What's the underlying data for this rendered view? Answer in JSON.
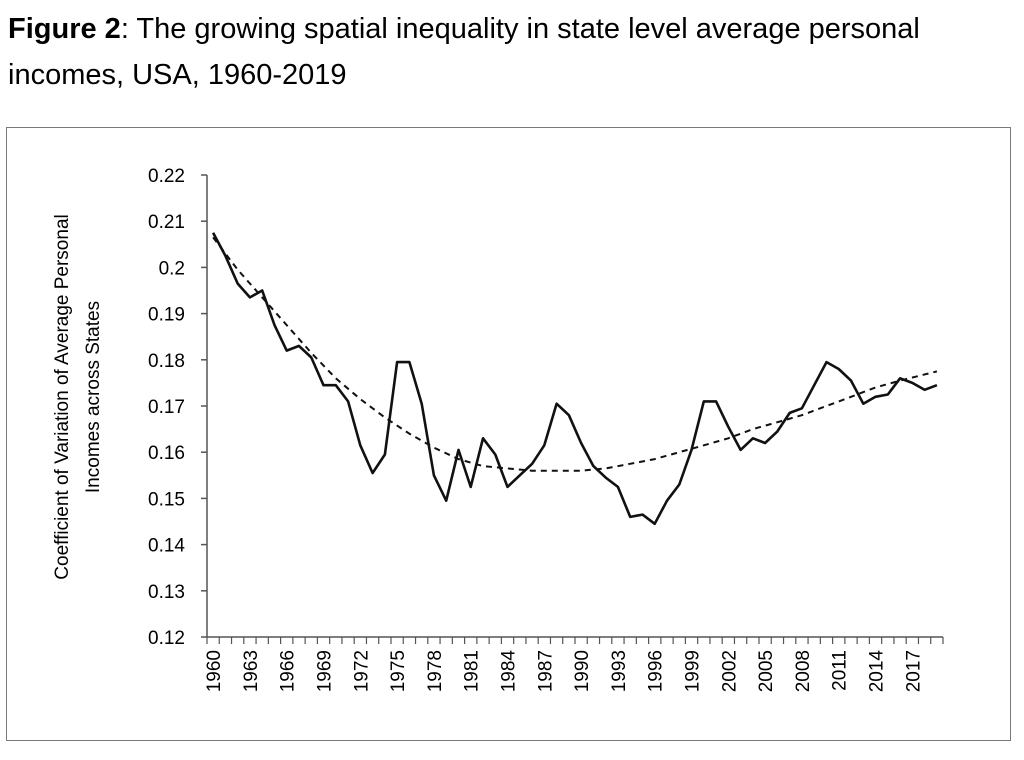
{
  "caption": {
    "prefix": "Figure 2",
    "text": ": The growing spatial inequality in state level average personal incomes, USA, 1960-2019"
  },
  "chart_data": {
    "type": "line",
    "title": "",
    "xlabel": "",
    "ylabel_line1": "Coefficient of Variation of Average Personal",
    "ylabel_line2": "Incomes across States",
    "ylim": [
      0.12,
      0.22
    ],
    "yticks": [
      0.12,
      0.13,
      0.14,
      0.15,
      0.16,
      0.17,
      0.18,
      0.19,
      0.2,
      0.21,
      0.22
    ],
    "ytick_labels": [
      "0.12",
      "0.13",
      "0.14",
      "0.15",
      "0.16",
      "0.17",
      "0.18",
      "0.19",
      "0.2",
      "0.21",
      "0.22"
    ],
    "xlim": [
      1960,
      2019
    ],
    "xtick_labels": [
      "1960",
      "1963",
      "1966",
      "1969",
      "1972",
      "1975",
      "1978",
      "1981",
      "1984",
      "1987",
      "1990",
      "1993",
      "1996",
      "1999",
      "2002",
      "2005",
      "2008",
      "2011",
      "2014",
      "2017"
    ],
    "grid": false,
    "series": [
      {
        "style": "solid",
        "x": [
          1960,
          1961,
          1962,
          1963,
          1964,
          1965,
          1966,
          1967,
          1968,
          1969,
          1970,
          1971,
          1972,
          1973,
          1974,
          1975,
          1976,
          1977,
          1978,
          1979,
          1980,
          1981,
          1982,
          1983,
          1984,
          1985,
          1986,
          1987,
          1988,
          1989,
          1990,
          1991,
          1992,
          1993,
          1994,
          1995,
          1996,
          1997,
          1998,
          1999,
          2000,
          2001,
          2002,
          2003,
          2004,
          2005,
          2006,
          2007,
          2008,
          2009,
          2010,
          2011,
          2012,
          2013,
          2014,
          2015,
          2016,
          2017,
          2018,
          2019
        ],
        "values": [
          0.2075,
          0.2025,
          0.1965,
          0.1935,
          0.195,
          0.1875,
          0.182,
          0.183,
          0.1805,
          0.1745,
          0.1745,
          0.171,
          0.1615,
          0.1555,
          0.1595,
          0.1795,
          0.1795,
          0.1705,
          0.155,
          0.1495,
          0.1605,
          0.1525,
          0.163,
          0.1595,
          0.1525,
          0.155,
          0.1575,
          0.1615,
          0.1705,
          0.168,
          0.162,
          0.157,
          0.1545,
          0.1525,
          0.146,
          0.1465,
          0.1445,
          0.1495,
          0.153,
          0.1605,
          0.171,
          0.171,
          0.1655,
          0.1605,
          0.163,
          0.162,
          0.1645,
          0.1685,
          0.1695,
          0.1745,
          0.1795,
          0.178,
          0.1755,
          0.1705,
          0.172,
          0.1725,
          0.176,
          0.175,
          0.1735,
          0.1745
        ]
      },
      {
        "style": "dashed",
        "x": [
          1960,
          1962,
          1964,
          1966,
          1968,
          1970,
          1972,
          1974,
          1976,
          1978,
          1980,
          1982,
          1984,
          1986,
          1988,
          1990,
          1992,
          1994,
          1996,
          1998,
          2000,
          2002,
          2004,
          2006,
          2008,
          2010,
          2012,
          2014,
          2016,
          2019
        ],
        "values": [
          0.2065,
          0.1995,
          0.1935,
          0.1875,
          0.1815,
          0.176,
          0.1715,
          0.1675,
          0.164,
          0.161,
          0.1585,
          0.157,
          0.1565,
          0.156,
          0.156,
          0.156,
          0.1565,
          0.1575,
          0.1585,
          0.16,
          0.1615,
          0.163,
          0.165,
          0.1665,
          0.168,
          0.17,
          0.172,
          0.174,
          0.1755,
          0.1775
        ]
      }
    ]
  }
}
